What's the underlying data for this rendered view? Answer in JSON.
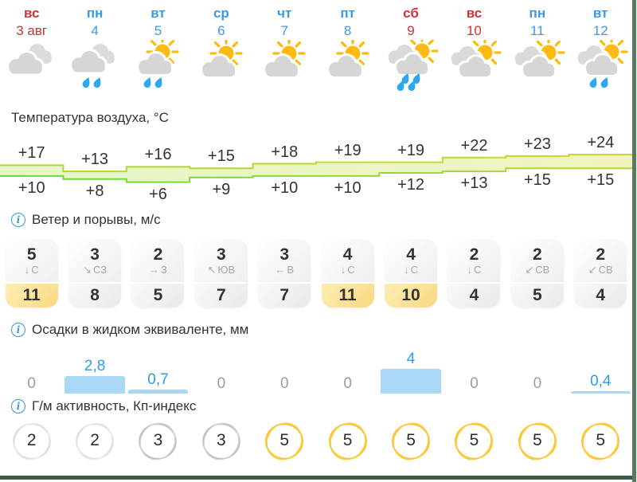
{
  "sections": {
    "temperature": {
      "title": "Температура воздуха, °C"
    },
    "wind": {
      "title": "Ветер и порывы, м/с"
    },
    "precipitation": {
      "title": "Осадки в жидком эквиваленте, мм"
    },
    "geomagnetic": {
      "title": "Г/м активность, Кп-индекс"
    }
  },
  "columns": [
    {
      "weekday": "вс",
      "date": "3 авг",
      "icon": "cloudy",
      "t_max": "+17",
      "t_min": "+10",
      "wind": "5",
      "arrow": "↓",
      "dir": "С",
      "gust": "11",
      "precip": "0",
      "kp": "2"
    },
    {
      "weekday": "пн",
      "date": "4",
      "icon": "cloudy-rain",
      "t_max": "+13",
      "t_min": "+8",
      "wind": "3",
      "arrow": "↘",
      "dir": "СЗ",
      "gust": "8",
      "precip": "2,8",
      "kp": "2"
    },
    {
      "weekday": "вт",
      "date": "5",
      "icon": "sun-cloud-rain",
      "t_max": "+16",
      "t_min": "+6",
      "wind": "2",
      "arrow": "→",
      "dir": "З",
      "gust": "5",
      "precip": "0,7",
      "kp": "3"
    },
    {
      "weekday": "ср",
      "date": "6",
      "icon": "sun-cloud",
      "t_max": "+15",
      "t_min": "+9",
      "wind": "3",
      "arrow": "↖",
      "dir": "ЮВ",
      "gust": "7",
      "precip": "0",
      "kp": "3"
    },
    {
      "weekday": "чт",
      "date": "7",
      "icon": "sun-cloud",
      "t_max": "+18",
      "t_min": "+10",
      "wind": "3",
      "arrow": "←",
      "dir": "В",
      "gust": "7",
      "precip": "0",
      "kp": "5"
    },
    {
      "weekday": "пт",
      "date": "8",
      "icon": "sun-cloud",
      "t_max": "+19",
      "t_min": "+10",
      "wind": "4",
      "arrow": "↓",
      "dir": "С",
      "gust": "11",
      "precip": "0",
      "kp": "5"
    },
    {
      "weekday": "сб",
      "date": "9",
      "icon": "sun-clouds-rain4",
      "t_max": "+19",
      "t_min": "+12",
      "wind": "4",
      "arrow": "↓",
      "dir": "С",
      "gust": "10",
      "precip": "4",
      "kp": "5"
    },
    {
      "weekday": "вс",
      "date": "10",
      "icon": "sun-clouds",
      "t_max": "+22",
      "t_min": "+13",
      "wind": "2",
      "arrow": "↓",
      "dir": "С",
      "gust": "4",
      "precip": "0",
      "kp": "5"
    },
    {
      "weekday": "пн",
      "date": "11",
      "icon": "sun-clouds",
      "t_max": "+23",
      "t_min": "+15",
      "wind": "2",
      "arrow": "↙",
      "dir": "СВ",
      "gust": "5",
      "precip": "0",
      "kp": "5"
    },
    {
      "weekday": "вт",
      "date": "12",
      "icon": "sun-clouds-rain2",
      "t_max": "+24",
      "t_min": "+15",
      "wind": "2",
      "arrow": "↙",
      "dir": "СВ",
      "gust": "4",
      "precip": "0,4",
      "kp": "5"
    }
  ],
  "colors": {
    "weekend_red": "#cc3333",
    "weekday_blue": "#3b9ae1",
    "sun_yellow": "#fcbb13",
    "cloud_gray": "#d6d6d6",
    "rain_drop_blue": "#2da7f2",
    "precip_bar_blue": "#a9d7f5",
    "precip_value_blue": "#2e9ce8",
    "band_fill_green": "#e8f6c8",
    "band_edge_green": "#8fd437",
    "gust_highlight_yellow": "#f9d87f",
    "kp_high_yellow": "#fcbf15"
  }
}
